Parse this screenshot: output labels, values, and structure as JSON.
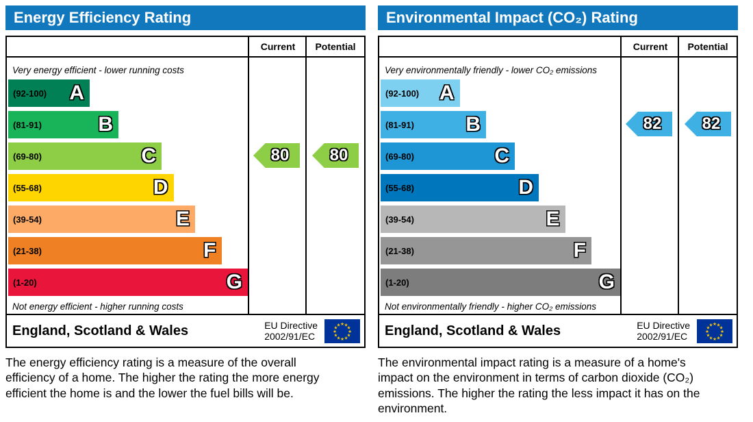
{
  "left_panel": {
    "title": "Energy Efficiency Rating",
    "columns": {
      "current": "Current",
      "potential": "Potential"
    },
    "top_caption": "Very energy efficient - lower running costs",
    "bottom_caption": "Not energy efficient - higher running costs",
    "bands": [
      {
        "letter": "A",
        "range": "(92-100)",
        "color": "#008054",
        "width_pct": 34
      },
      {
        "letter": "B",
        "range": "(81-91)",
        "color": "#19b459",
        "width_pct": 46
      },
      {
        "letter": "C",
        "range": "(69-80)",
        "color": "#8dce46",
        "width_pct": 64
      },
      {
        "letter": "D",
        "range": "(55-68)",
        "color": "#ffd500",
        "width_pct": 69
      },
      {
        "letter": "E",
        "range": "(39-54)",
        "color": "#fcaa65",
        "width_pct": 78
      },
      {
        "letter": "F",
        "range": "(21-38)",
        "color": "#ef8023",
        "width_pct": 89
      },
      {
        "letter": "G",
        "range": "(1-20)",
        "color": "#e9153b",
        "width_pct": 100
      }
    ],
    "current": {
      "value": "80",
      "band": "C",
      "color": "#8dce46"
    },
    "potential": {
      "value": "80",
      "band": "C",
      "color": "#8dce46"
    },
    "footer": {
      "region": "England, Scotland & Wales",
      "directive_line1": "EU Directive",
      "directive_line2": "2002/91/EC",
      "flag": "eu-flag-icon"
    },
    "description": "The energy efficiency rating is a measure of the overall efficiency of a home. The higher the rating the more energy efficient the home is and the lower the fuel bills will be."
  },
  "right_panel": {
    "title": "Environmental Impact (CO₂) Rating",
    "columns": {
      "current": "Current",
      "potential": "Potential"
    },
    "top_caption": "Very environmentally friendly - lower CO₂ emissions",
    "bottom_caption": "Not environmentally friendly - higher CO₂ emissions",
    "bands": [
      {
        "letter": "A",
        "range": "(92-100)",
        "color": "#7ed0f1",
        "width_pct": 33
      },
      {
        "letter": "B",
        "range": "(81-91)",
        "color": "#3fb0e4",
        "width_pct": 44
      },
      {
        "letter": "C",
        "range": "(69-80)",
        "color": "#1e96d5",
        "width_pct": 56
      },
      {
        "letter": "D",
        "range": "(55-68)",
        "color": "#0077bd",
        "width_pct": 66
      },
      {
        "letter": "E",
        "range": "(39-54)",
        "color": "#b7b7b7",
        "width_pct": 77
      },
      {
        "letter": "F",
        "range": "(21-38)",
        "color": "#969696",
        "width_pct": 88
      },
      {
        "letter": "G",
        "range": "(1-20)",
        "color": "#7d7d7d",
        "width_pct": 100
      }
    ],
    "current": {
      "value": "82",
      "band": "B",
      "color": "#3fb0e4"
    },
    "potential": {
      "value": "82",
      "band": "B",
      "color": "#3fb0e4"
    },
    "footer": {
      "region": "England, Scotland & Wales",
      "directive_line1": "EU Directive",
      "directive_line2": "2002/91/EC",
      "flag": "eu-flag-icon"
    },
    "description": "The environmental impact rating is a measure of a home's impact on the environment in terms of carbon dioxide (CO₂) emissions. The higher the rating the less impact it has on the environment."
  },
  "chart_data": [
    {
      "type": "bar",
      "title": "Energy Efficiency Rating",
      "categories": [
        "A (92-100)",
        "B (81-91)",
        "C (69-80)",
        "D (55-68)",
        "E (39-54)",
        "F (21-38)",
        "G (1-20)"
      ],
      "series": [
        {
          "name": "Current",
          "values": [
            80
          ],
          "band": "C"
        },
        {
          "name": "Potential",
          "values": [
            80
          ],
          "band": "C"
        }
      ],
      "ylim": [
        1,
        100
      ],
      "annotations": [
        "Very energy efficient - lower running costs",
        "Not energy efficient - higher running costs",
        "England, Scotland & Wales",
        "EU Directive 2002/91/EC"
      ]
    },
    {
      "type": "bar",
      "title": "Environmental Impact (CO₂) Rating",
      "categories": [
        "A (92-100)",
        "B (81-91)",
        "C (69-80)",
        "D (55-68)",
        "E (39-54)",
        "F (21-38)",
        "G (1-20)"
      ],
      "series": [
        {
          "name": "Current",
          "values": [
            82
          ],
          "band": "B"
        },
        {
          "name": "Potential",
          "values": [
            82
          ],
          "band": "B"
        }
      ],
      "ylim": [
        1,
        100
      ],
      "annotations": [
        "Very environmentally friendly - lower CO₂ emissions",
        "Not environmentally friendly - higher CO₂ emissions",
        "England, Scotland & Wales",
        "EU Directive 2002/91/EC"
      ]
    }
  ]
}
